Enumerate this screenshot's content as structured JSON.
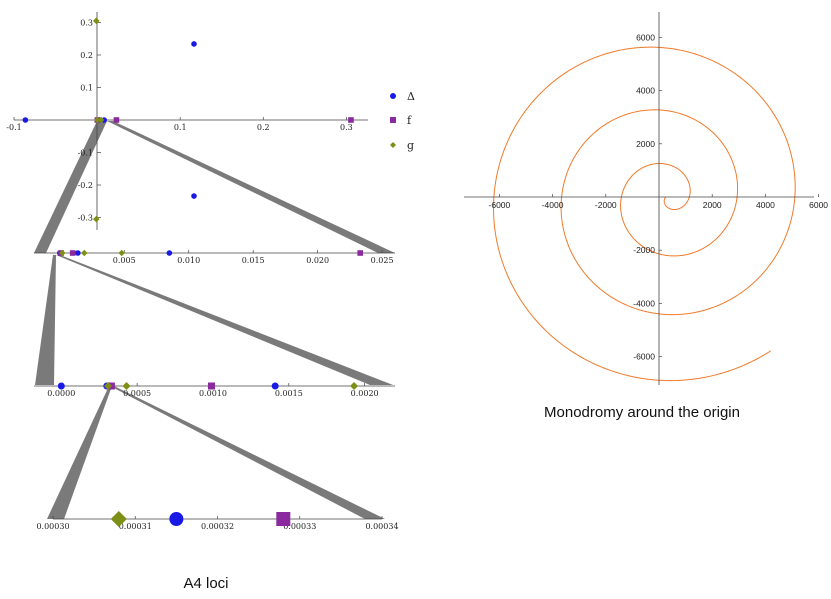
{
  "colors": {
    "delta": "#1a1ae6",
    "f": "#8a2a9e",
    "g": "#7d8f14",
    "spiral": "#f07a2a",
    "wedge": "#7a7a7a",
    "axis": "#444444"
  },
  "captions": {
    "left": "A4 loci",
    "right": "Monodromy around the origin"
  },
  "legend": [
    {
      "key": "delta",
      "label": "Δ",
      "shape": "circle"
    },
    {
      "key": "f",
      "label": "f",
      "shape": "square"
    },
    {
      "key": "g",
      "label": "g",
      "shape": "diamond"
    }
  ],
  "chart_data": [
    {
      "type": "scatter",
      "panel": "top",
      "xlim": [
        -0.1,
        0.32
      ],
      "ylim": [
        -0.32,
        0.32
      ],
      "xticks": [
        "-0.1",
        "0.1",
        "0.2",
        "0.3"
      ],
      "xtick_values": [
        -0.1,
        0.1,
        0.2,
        0.3
      ],
      "yticks": [
        "0.3",
        "0.2",
        "0.1",
        "-0.1",
        "-0.2",
        "-0.3"
      ],
      "ytick_values": [
        0.3,
        0.2,
        0.1,
        -0.1,
        -0.2,
        -0.3
      ],
      "series": [
        {
          "name": "Δ",
          "key": "delta",
          "points": [
            [
              -0.0863,
              0
            ],
            [
              0.0025,
              0
            ],
            [
              0.0085,
              0
            ],
            [
              0.1166,
              0.234
            ],
            [
              0.1166,
              -0.234
            ]
          ]
        },
        {
          "name": "f",
          "key": "f",
          "points": [
            [
              0.0003,
              0
            ],
            [
              0.0233,
              0
            ],
            [
              0.3055,
              0
            ]
          ]
        },
        {
          "name": "g",
          "key": "g",
          "points": [
            [
              -0.001,
              0.305
            ],
            [
              -0.001,
              -0.305
            ],
            [
              0.0003,
              0
            ],
            [
              0.0048,
              0
            ]
          ]
        }
      ]
    },
    {
      "type": "scatter",
      "panel": "zoom1",
      "xlim": [
        -0.002,
        0.026
      ],
      "xticks": [
        "0.005",
        "0.010",
        "0.015",
        "0.020",
        "0.025"
      ],
      "xtick_values": [
        0.005,
        0.01,
        0.015,
        0.02,
        0.025
      ],
      "series": [
        {
          "name": "Δ",
          "key": "delta",
          "points": [
            [
              0.0,
              0
            ],
            [
              0.0014,
              0
            ],
            [
              0.0085,
              0
            ]
          ]
        },
        {
          "name": "f",
          "key": "f",
          "points": [
            [
              0.0001,
              0
            ],
            [
              0.001,
              0
            ],
            [
              0.0233,
              0
            ]
          ]
        },
        {
          "name": "g",
          "key": "g",
          "points": [
            [
              0.0002,
              0
            ],
            [
              0.0019,
              0
            ],
            [
              0.0048,
              0
            ]
          ]
        }
      ]
    },
    {
      "type": "scatter",
      "panel": "zoom2",
      "xlim": [
        -0.00018,
        0.0022
      ],
      "xticks": [
        "0.0000",
        "0.0005",
        "0.0010",
        "0.0015",
        "0.0020"
      ],
      "xtick_values": [
        0.0,
        0.0005,
        0.001,
        0.0015,
        0.002
      ],
      "series": [
        {
          "name": "Δ",
          "key": "delta",
          "points": [
            [
              0.0,
              0
            ],
            [
              0.0003,
              0
            ],
            [
              0.00141,
              0
            ]
          ]
        },
        {
          "name": "f",
          "key": "f",
          "points": [
            [
              0.00033,
              0
            ],
            [
              0.00099,
              0
            ]
          ]
        },
        {
          "name": "g",
          "key": "g",
          "points": [
            [
              0.000308,
              0
            ],
            [
              0.00043,
              0
            ],
            [
              0.00193,
              0
            ]
          ]
        }
      ]
    },
    {
      "type": "scatter",
      "panel": "zoom3",
      "xlim": [
        0.0003,
        0.00034
      ],
      "xticks": [
        "0.00030",
        "0.00031",
        "0.00032",
        "0.00033",
        "0.00034"
      ],
      "xtick_values": [
        0.0003,
        0.00031,
        0.00032,
        0.00033,
        0.00034
      ],
      "series": [
        {
          "name": "Δ",
          "key": "delta",
          "points": [
            [
              0.000315,
              0
            ]
          ]
        },
        {
          "name": "f",
          "key": "f",
          "points": [
            [
              0.000328,
              0
            ]
          ]
        },
        {
          "name": "g",
          "key": "g",
          "points": [
            [
              0.000308,
              0
            ]
          ]
        }
      ]
    },
    {
      "type": "line",
      "panel": "monodromy",
      "xlim": [
        -7500,
        6000
      ],
      "ylim": [
        -7000,
        7000
      ],
      "xticks": [
        "-6000",
        "-4000",
        "-2000",
        "2000",
        "4000",
        "6000"
      ],
      "xtick_values": [
        -6000,
        -4000,
        -2000,
        2000,
        4000,
        6000
      ],
      "yticks": [
        "6000",
        "4000",
        "2000",
        "-2000",
        "-4000",
        "-6000"
      ],
      "ytick_values": [
        6000,
        4000,
        2000,
        -2000,
        -4000,
        -6000
      ],
      "spiral": {
        "center_x": 0,
        "center_y": 0,
        "shift_x_at_min": 400,
        "r_min": 150,
        "r_max": 7150,
        "turns": 3.35
      }
    }
  ]
}
